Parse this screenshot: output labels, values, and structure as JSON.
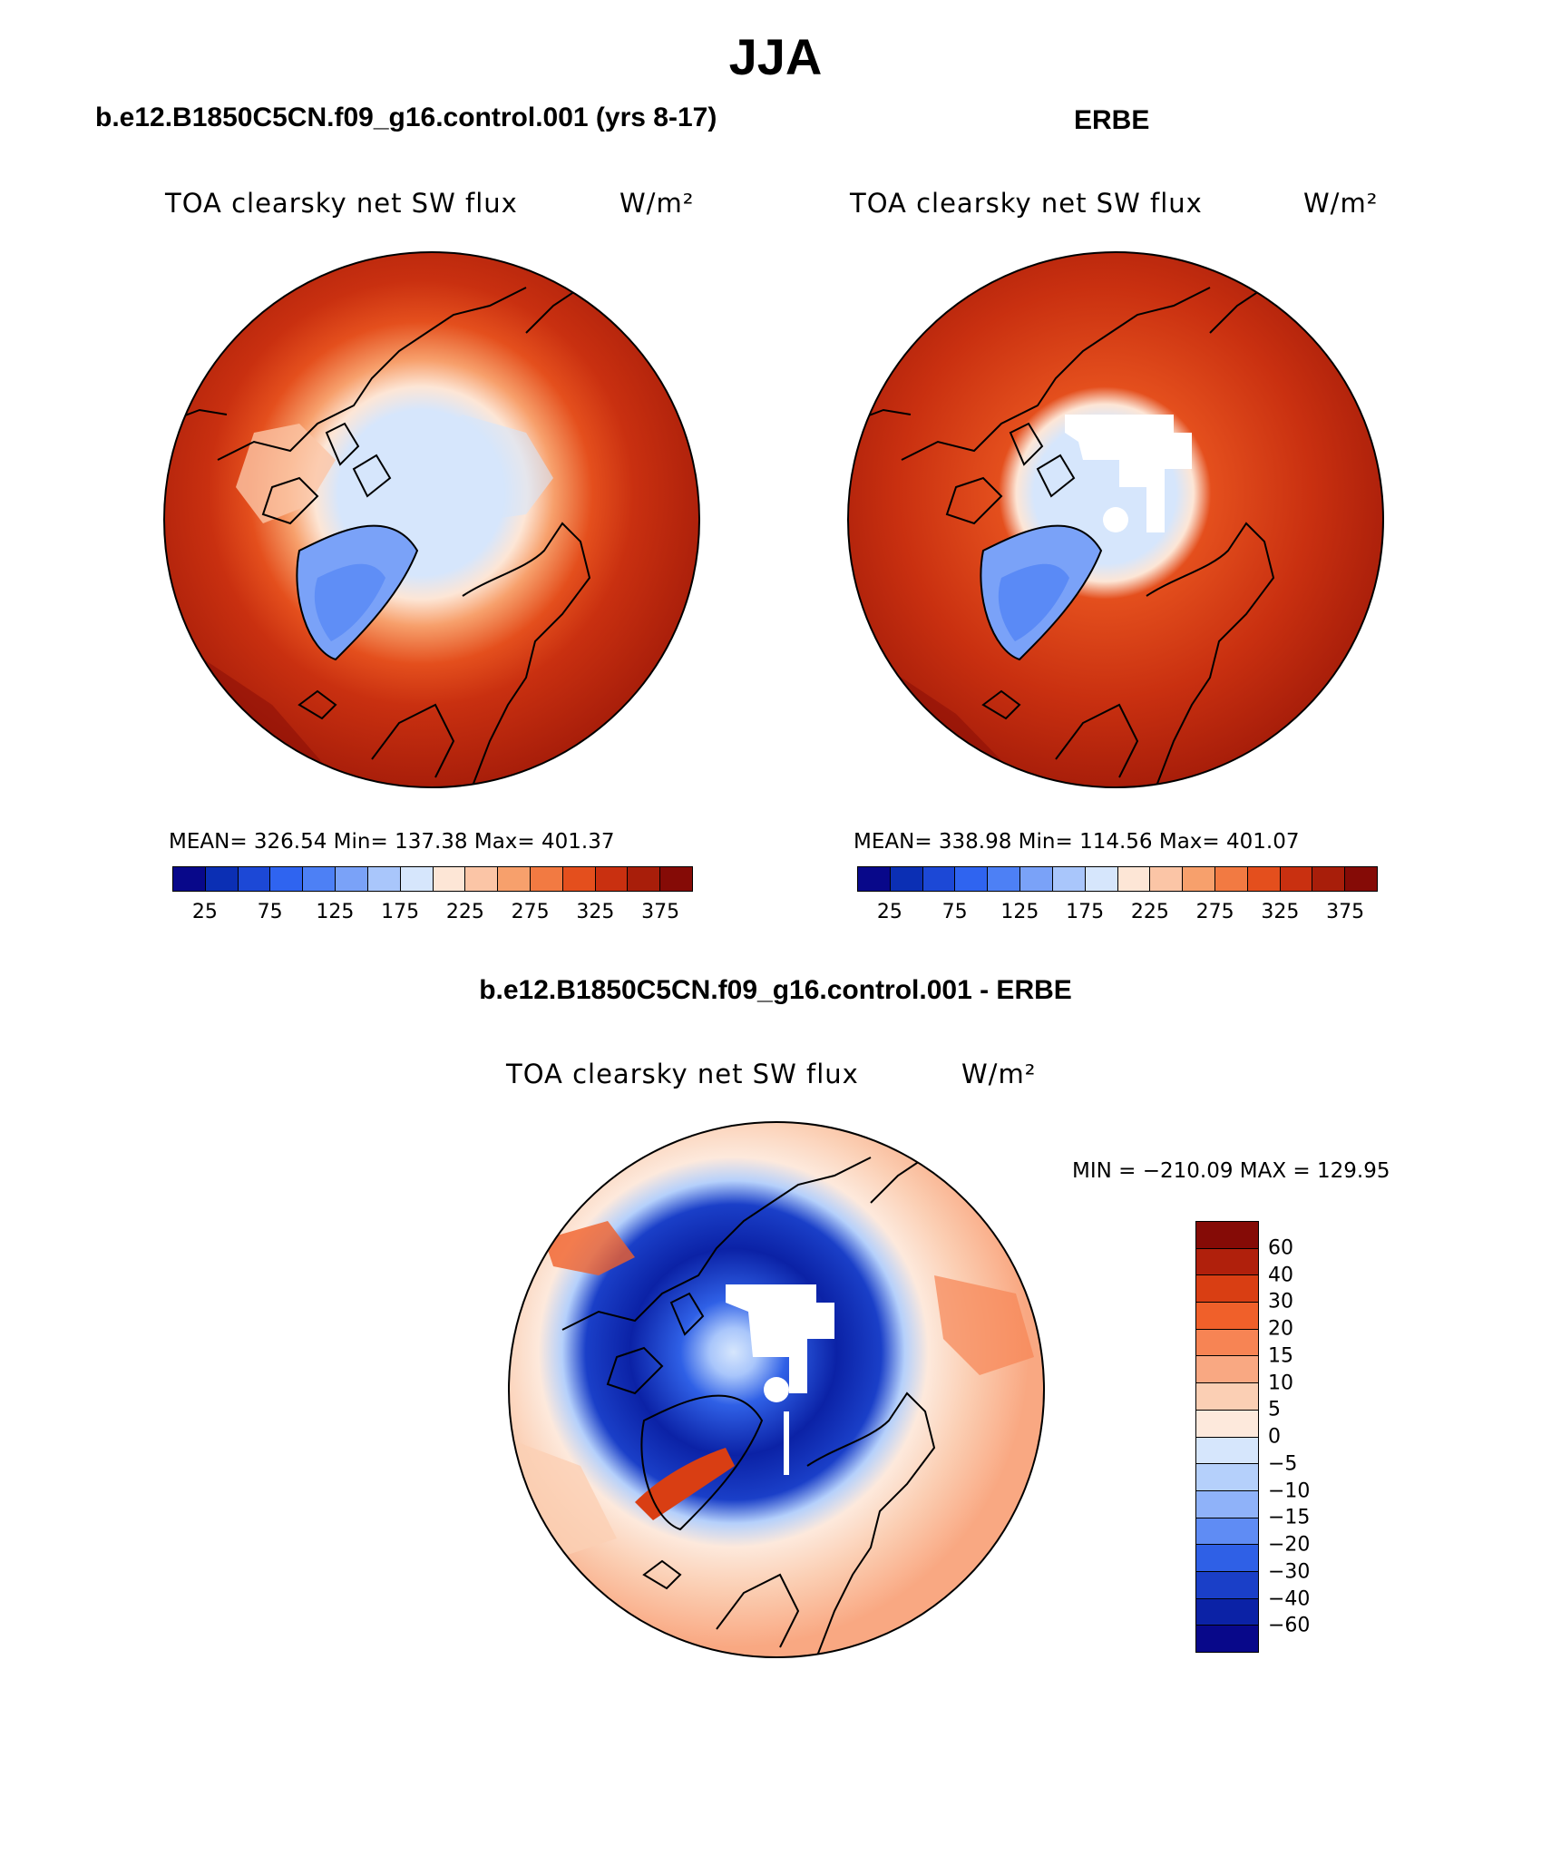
{
  "main_title": "JJA",
  "panels": {
    "model": {
      "title": "b.e12.B1850C5CN.f09_g16.control.001 (yrs 8-17)",
      "variable": "TOA clearsky net SW flux",
      "units": "W/m²",
      "stats": "MEAN= 326.54   Min= 137.38   Max= 401.37"
    },
    "obs": {
      "title": "ERBE",
      "variable": "TOA clearsky net SW flux",
      "units": "W/m²",
      "stats": "MEAN= 338.98   Min= 114.56   Max= 401.07"
    },
    "diff": {
      "title": "b.e12.B1850C5CN.f09_g16.control.001 - ERBE",
      "variable": "TOA clearsky net SW flux",
      "units": "W/m²",
      "stats": "MIN = −210.09 MAX = 129.95"
    }
  },
  "colorbar_abs": {
    "colors": [
      "#08088a",
      "#0b2fb4",
      "#1c48d6",
      "#2f64f0",
      "#4d80f5",
      "#7aa2f8",
      "#a9c6fb",
      "#d6e6fc",
      "#fde6d6",
      "#fbc5a6",
      "#f7a06c",
      "#f27a42",
      "#e44f1d",
      "#c93010",
      "#a81e0a",
      "#850b06"
    ],
    "labels": [
      "25",
      "75",
      "125",
      "175",
      "225",
      "275",
      "325",
      "375"
    ]
  },
  "colorbar_diff": {
    "colors": [
      "#850b06",
      "#b0200c",
      "#d93e13",
      "#f0602a",
      "#f78454",
      "#f9a882",
      "#fbcfb4",
      "#fde9dc",
      "#d6e6fc",
      "#b5d0fb",
      "#8fb2f9",
      "#5f8cf4",
      "#2f60e6",
      "#1a3fc8",
      "#0b22a6",
      "#08088a"
    ],
    "labels": [
      "60",
      "40",
      "30",
      "20",
      "15",
      "10",
      "5",
      "0",
      "−5",
      "−10",
      "−15",
      "−20",
      "−30",
      "−40",
      "−60"
    ]
  }
}
